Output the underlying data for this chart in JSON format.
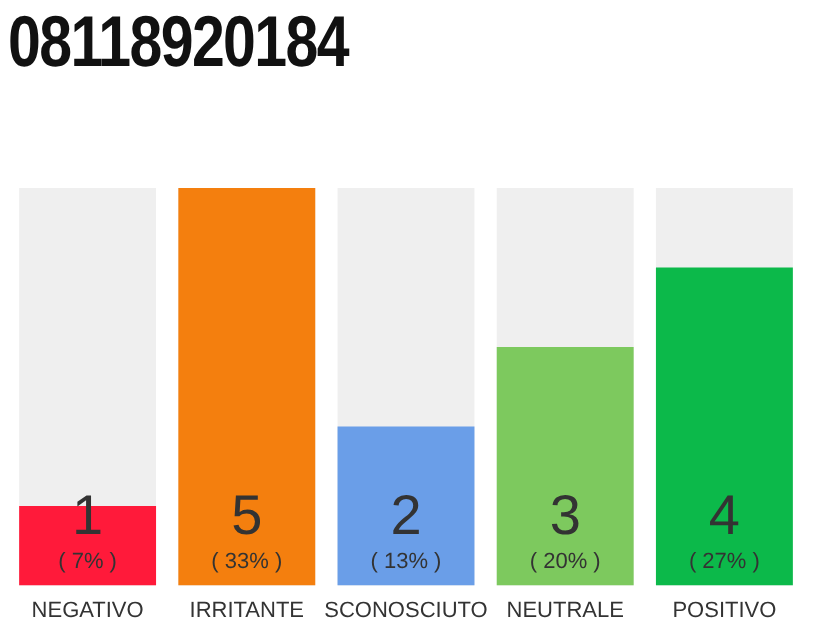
{
  "chart_data": {
    "type": "bar",
    "title": "08118920184",
    "categories": [
      "NEGATIVO",
      "IRRITANTE",
      "SCONOSCIUTO",
      "NEUTRALE",
      "POSITIVO"
    ],
    "values": [
      1,
      5,
      2,
      3,
      4
    ],
    "colors": [
      "#ff1a3a",
      "#f47f0e",
      "#6a9ee8",
      "#7dc95e",
      "#0cb94a"
    ],
    "data_labels": true,
    "grid": false,
    "legend": false,
    "annotations": [
      "( 7% )",
      "( 33% )",
      "( 13% )",
      "( 20% )",
      "( 27% )"
    ]
  }
}
